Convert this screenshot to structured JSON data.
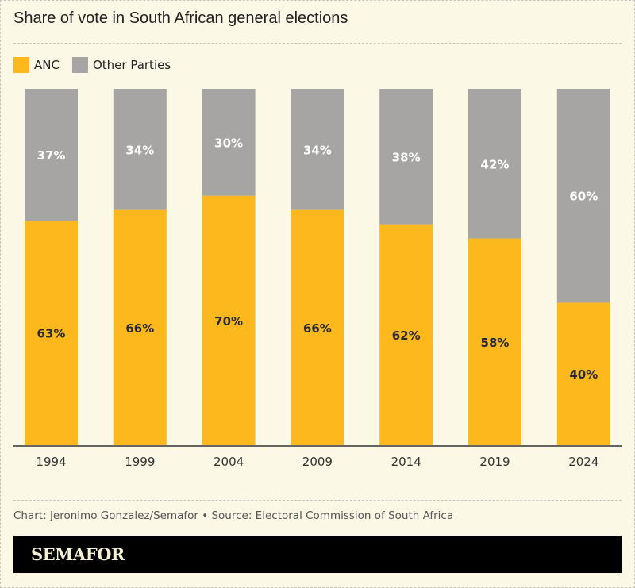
{
  "title": "Share of vote in South African general elections",
  "legend": [
    {
      "label": "ANC",
      "color": "#fdb81e"
    },
    {
      "label": "Other Parties",
      "color": "#a6a5a3"
    }
  ],
  "source": "Chart: Jeronimo Gonzalez/Semafor • Source: Electoral Commission of South Africa",
  "brand": "SEMAFOR",
  "chart_data": {
    "type": "bar",
    "stacked": true,
    "title": "Share of vote in South African general elections",
    "categories": [
      "1994",
      "1999",
      "2004",
      "2009",
      "2014",
      "2019",
      "2024"
    ],
    "series": [
      {
        "name": "ANC",
        "values": [
          63,
          66,
          70,
          66,
          62,
          58,
          40
        ],
        "color": "#fdb81e",
        "label_color": "#2a2a33"
      },
      {
        "name": "Other Parties",
        "values": [
          37,
          34,
          30,
          34,
          38,
          42,
          60
        ],
        "color": "#a6a5a3",
        "label_color": "#ffffff"
      }
    ],
    "ylim": [
      0,
      100
    ],
    "value_suffix": "%",
    "grid": false,
    "legend_position": "top-left"
  }
}
